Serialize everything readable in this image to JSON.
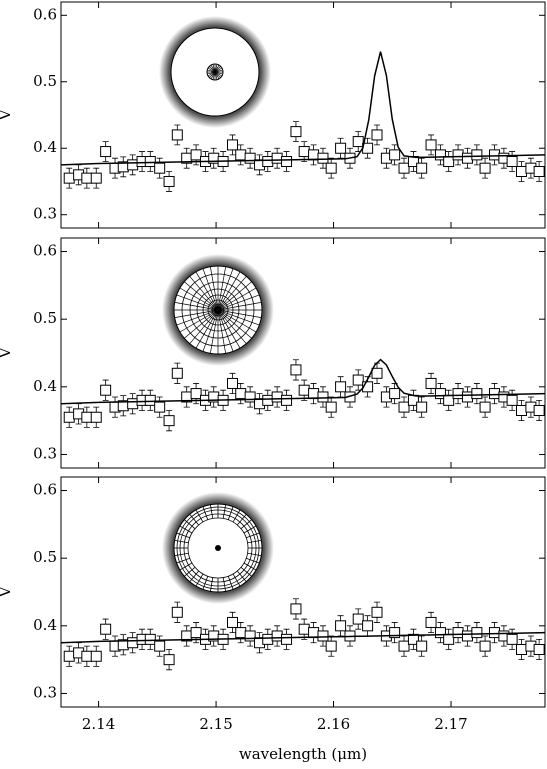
{
  "chart_data": [
    {
      "type": "scatter",
      "ylabel": "V",
      "xlim": [
        2.1368,
        2.178
      ],
      "ylim": [
        0.28,
        0.62
      ],
      "yticks": [
        0.3,
        0.4,
        0.5,
        0.6
      ],
      "xticks": [
        2.14,
        2.15,
        2.16,
        2.17
      ],
      "series": [
        {
          "name": "data",
          "color": "#000000",
          "x": [
            2.1375,
            2.1383,
            2.139,
            2.1398,
            2.1406,
            2.1414,
            2.1421,
            2.1429,
            2.1437,
            2.1444,
            2.1452,
            2.146,
            2.1467,
            2.1475,
            2.1483,
            2.1491,
            2.1498,
            2.1506,
            2.1514,
            2.1521,
            2.1529,
            2.1537,
            2.1544,
            2.1552,
            2.156,
            2.1568,
            2.1575,
            2.1583,
            2.1591,
            2.1598,
            2.1606,
            2.1614,
            2.1621,
            2.1629,
            2.1637,
            2.1645,
            2.1652,
            2.166,
            2.1668,
            2.1675,
            2.1683,
            2.1691,
            2.1698,
            2.1706,
            2.1714,
            2.1722,
            2.1729,
            2.1737,
            2.1745,
            2.1752,
            2.176,
            2.1768,
            2.1775
          ],
          "values": [
            0.355,
            0.36,
            0.355,
            0.355,
            0.395,
            0.37,
            0.372,
            0.375,
            0.38,
            0.38,
            0.37,
            0.35,
            0.42,
            0.385,
            0.39,
            0.38,
            0.385,
            0.38,
            0.405,
            0.39,
            0.385,
            0.375,
            0.38,
            0.385,
            0.38,
            0.425,
            0.395,
            0.39,
            0.385,
            0.37,
            0.4,
            0.385,
            0.41,
            0.4,
            0.42,
            0.385,
            0.39,
            0.37,
            0.38,
            0.37,
            0.405,
            0.39,
            0.38,
            0.39,
            0.385,
            0.39,
            0.37,
            0.39,
            0.385,
            0.38,
            0.365,
            0.37,
            0.365
          ],
          "errors": [
            0.015,
            0.015,
            0.015,
            0.015,
            0.015,
            0.015,
            0.015,
            0.015,
            0.015,
            0.015,
            0.015,
            0.015,
            0.015,
            0.015,
            0.015,
            0.015,
            0.015,
            0.015,
            0.015,
            0.015,
            0.015,
            0.015,
            0.015,
            0.015,
            0.015,
            0.015,
            0.015,
            0.015,
            0.015,
            0.015,
            0.015,
            0.015,
            0.015,
            0.015,
            0.015,
            0.015,
            0.015,
            0.015,
            0.015,
            0.015,
            0.015,
            0.015,
            0.015,
            0.015,
            0.015,
            0.015,
            0.015,
            0.015,
            0.015,
            0.015,
            0.015,
            0.015,
            0.015
          ]
        },
        {
          "name": "model",
          "color": "#000000",
          "x": [
            2.1368,
            2.14,
            2.145,
            2.15,
            2.155,
            2.16,
            2.161,
            2.162,
            2.1625,
            2.163,
            2.1635,
            2.164,
            2.1645,
            2.165,
            2.1655,
            2.166,
            2.167,
            2.168,
            2.17,
            2.175,
            2.178
          ],
          "values": [
            0.375,
            0.377,
            0.3787,
            0.3804,
            0.3821,
            0.3838,
            0.3841,
            0.3872,
            0.4006,
            0.4428,
            0.509,
            0.5452,
            0.5093,
            0.4435,
            0.4017,
            0.3885,
            0.3862,
            0.3865,
            0.3872,
            0.3889,
            0.39
          ]
        }
      ]
    },
    {
      "type": "scatter",
      "ylabel": "V",
      "xlim": [
        2.1368,
        2.178
      ],
      "ylim": [
        0.28,
        0.62
      ],
      "yticks": [
        0.3,
        0.4,
        0.5,
        0.6
      ],
      "xticks": [
        2.14,
        2.15,
        2.16,
        2.17
      ],
      "series": [
        {
          "name": "data",
          "color": "#000000",
          "x": [
            2.1375,
            2.1383,
            2.139,
            2.1398,
            2.1406,
            2.1414,
            2.1421,
            2.1429,
            2.1437,
            2.1444,
            2.1452,
            2.146,
            2.1467,
            2.1475,
            2.1483,
            2.1491,
            2.1498,
            2.1506,
            2.1514,
            2.1521,
            2.1529,
            2.1537,
            2.1544,
            2.1552,
            2.156,
            2.1568,
            2.1575,
            2.1583,
            2.1591,
            2.1598,
            2.1606,
            2.1614,
            2.1621,
            2.1629,
            2.1637,
            2.1645,
            2.1652,
            2.166,
            2.1668,
            2.1675,
            2.1683,
            2.1691,
            2.1698,
            2.1706,
            2.1714,
            2.1722,
            2.1729,
            2.1737,
            2.1745,
            2.1752,
            2.176,
            2.1768,
            2.1775
          ],
          "values": [
            0.355,
            0.36,
            0.355,
            0.355,
            0.395,
            0.37,
            0.372,
            0.375,
            0.38,
            0.38,
            0.37,
            0.35,
            0.42,
            0.385,
            0.39,
            0.38,
            0.385,
            0.38,
            0.405,
            0.39,
            0.385,
            0.375,
            0.38,
            0.385,
            0.38,
            0.425,
            0.395,
            0.39,
            0.385,
            0.37,
            0.4,
            0.385,
            0.41,
            0.4,
            0.42,
            0.385,
            0.39,
            0.37,
            0.38,
            0.37,
            0.405,
            0.39,
            0.38,
            0.39,
            0.385,
            0.39,
            0.37,
            0.39,
            0.385,
            0.38,
            0.365,
            0.37,
            0.365
          ],
          "errors": [
            0.015,
            0.015,
            0.015,
            0.015,
            0.015,
            0.015,
            0.015,
            0.015,
            0.015,
            0.015,
            0.015,
            0.015,
            0.015,
            0.015,
            0.015,
            0.015,
            0.015,
            0.015,
            0.015,
            0.015,
            0.015,
            0.015,
            0.015,
            0.015,
            0.015,
            0.015,
            0.015,
            0.015,
            0.015,
            0.015,
            0.015,
            0.015,
            0.015,
            0.015,
            0.015,
            0.015,
            0.015,
            0.015,
            0.015,
            0.015,
            0.015,
            0.015,
            0.015,
            0.015,
            0.015,
            0.015,
            0.015,
            0.015,
            0.015,
            0.015,
            0.015,
            0.015,
            0.015
          ]
        },
        {
          "name": "model",
          "color": "#000000",
          "x": [
            2.1368,
            2.14,
            2.145,
            2.15,
            2.155,
            2.16,
            2.161,
            2.162,
            2.1625,
            2.163,
            2.1635,
            2.164,
            2.1645,
            2.165,
            2.1655,
            2.166,
            2.167,
            2.168,
            2.17,
            2.175,
            2.178
          ],
          "values": [
            0.375,
            0.377,
            0.3787,
            0.3804,
            0.3821,
            0.3838,
            0.3843,
            0.3892,
            0.3983,
            0.4145,
            0.432,
            0.4402,
            0.4323,
            0.4152,
            0.3994,
            0.3905,
            0.3864,
            0.3865,
            0.3872,
            0.3889,
            0.39
          ]
        }
      ]
    },
    {
      "type": "scatter",
      "ylabel": "V",
      "xlabel": "wavelength (μm)",
      "xlim": [
        2.1368,
        2.178
      ],
      "ylim": [
        0.28,
        0.62
      ],
      "yticks": [
        0.3,
        0.4,
        0.5,
        0.6
      ],
      "xticks": [
        2.14,
        2.15,
        2.16,
        2.17
      ],
      "series": [
        {
          "name": "data",
          "color": "#000000",
          "x": [
            2.1375,
            2.1383,
            2.139,
            2.1398,
            2.1406,
            2.1414,
            2.1421,
            2.1429,
            2.1437,
            2.1444,
            2.1452,
            2.146,
            2.1467,
            2.1475,
            2.1483,
            2.1491,
            2.1498,
            2.1506,
            2.1514,
            2.1521,
            2.1529,
            2.1537,
            2.1544,
            2.1552,
            2.156,
            2.1568,
            2.1575,
            2.1583,
            2.1591,
            2.1598,
            2.1606,
            2.1614,
            2.1621,
            2.1629,
            2.1637,
            2.1645,
            2.1652,
            2.166,
            2.1668,
            2.1675,
            2.1683,
            2.1691,
            2.1698,
            2.1706,
            2.1714,
            2.1722,
            2.1729,
            2.1737,
            2.1745,
            2.1752,
            2.176,
            2.1768,
            2.1775
          ],
          "values": [
            0.355,
            0.36,
            0.355,
            0.355,
            0.395,
            0.37,
            0.372,
            0.375,
            0.38,
            0.38,
            0.37,
            0.35,
            0.42,
            0.385,
            0.39,
            0.38,
            0.385,
            0.38,
            0.405,
            0.39,
            0.385,
            0.375,
            0.38,
            0.385,
            0.38,
            0.425,
            0.395,
            0.39,
            0.385,
            0.37,
            0.4,
            0.385,
            0.41,
            0.4,
            0.42,
            0.385,
            0.39,
            0.37,
            0.38,
            0.37,
            0.405,
            0.39,
            0.38,
            0.39,
            0.385,
            0.39,
            0.37,
            0.39,
            0.385,
            0.38,
            0.365,
            0.37,
            0.365
          ],
          "errors": [
            0.015,
            0.015,
            0.015,
            0.015,
            0.015,
            0.015,
            0.015,
            0.015,
            0.015,
            0.015,
            0.015,
            0.015,
            0.015,
            0.015,
            0.015,
            0.015,
            0.015,
            0.015,
            0.015,
            0.015,
            0.015,
            0.015,
            0.015,
            0.015,
            0.015,
            0.015,
            0.015,
            0.015,
            0.015,
            0.015,
            0.015,
            0.015,
            0.015,
            0.015,
            0.015,
            0.015,
            0.015,
            0.015,
            0.015,
            0.015,
            0.015,
            0.015,
            0.015,
            0.015,
            0.015,
            0.015,
            0.015,
            0.015,
            0.015,
            0.015,
            0.015,
            0.015,
            0.015
          ]
        },
        {
          "name": "model",
          "color": "#000000",
          "x": [
            2.1368,
            2.14,
            2.145,
            2.15,
            2.155,
            2.16,
            2.161,
            2.162,
            2.1625,
            2.163,
            2.1635,
            2.164,
            2.1645,
            2.165,
            2.1655,
            2.166,
            2.167,
            2.168,
            2.17,
            2.175,
            2.178
          ],
          "values": [
            0.375,
            0.377,
            0.3787,
            0.3804,
            0.3821,
            0.3838,
            0.3841,
            0.3845,
            0.3846,
            0.3848,
            0.385,
            0.3852,
            0.3853,
            0.3855,
            0.3857,
            0.3858,
            0.3862,
            0.3865,
            0.3872,
            0.3889,
            0.39
          ]
        }
      ]
    }
  ]
}
